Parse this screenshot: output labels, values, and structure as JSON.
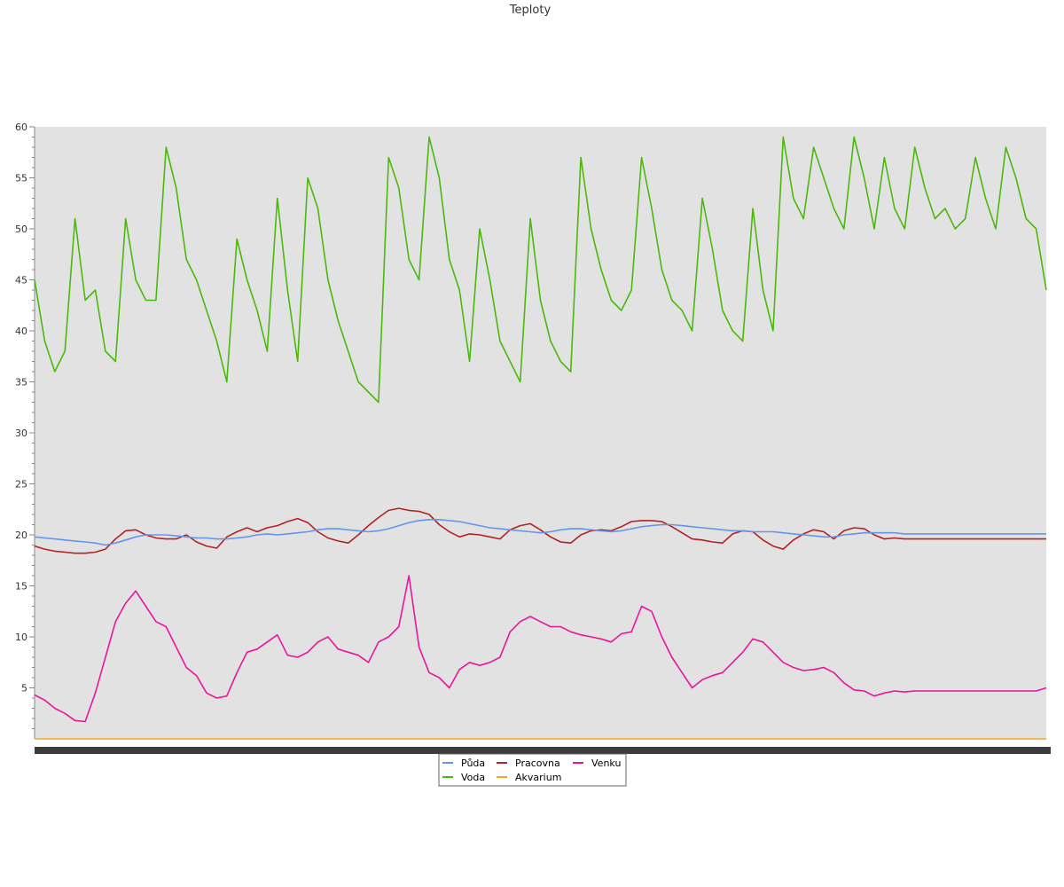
{
  "chart_data": {
    "type": "line",
    "title": "Teploty",
    "ylim": [
      0,
      60
    ],
    "yticks": [
      5,
      10,
      15,
      20,
      25,
      30,
      35,
      40,
      45,
      50,
      55,
      60
    ],
    "grid": false,
    "legend_position": "bottom-center",
    "x": [
      0,
      1,
      2,
      3,
      4,
      5,
      6,
      7,
      8,
      9,
      10,
      11,
      12,
      13,
      14,
      15,
      16,
      17,
      18,
      19,
      20,
      21,
      22,
      23,
      24,
      25,
      26,
      27,
      28,
      29,
      30,
      31,
      32,
      33,
      34,
      35,
      36,
      37,
      38,
      39,
      40,
      41,
      42,
      43,
      44,
      45,
      46,
      47,
      48,
      49,
      50,
      51,
      52,
      53,
      54,
      55,
      56,
      57,
      58,
      59,
      60,
      61,
      62,
      63,
      64,
      65,
      66,
      67,
      68,
      69,
      70,
      71,
      72,
      73,
      74,
      75,
      76,
      77,
      78,
      79,
      80,
      81,
      82,
      83,
      84,
      85,
      86,
      87,
      88,
      89,
      90,
      91,
      92,
      93,
      94,
      95,
      96,
      97,
      98,
      99,
      100
    ],
    "series": [
      {
        "name": "Půda",
        "color": "#6495ed",
        "values": [
          19.8,
          19.7,
          19.6,
          19.5,
          19.4,
          19.3,
          19.2,
          19.0,
          19.2,
          19.5,
          19.8,
          20.0,
          20.0,
          20.0,
          19.9,
          19.8,
          19.7,
          19.7,
          19.6,
          19.6,
          19.7,
          19.8,
          20.0,
          20.1,
          20.0,
          20.1,
          20.2,
          20.3,
          20.5,
          20.6,
          20.6,
          20.5,
          20.4,
          20.3,
          20.4,
          20.6,
          20.9,
          21.2,
          21.4,
          21.5,
          21.5,
          21.4,
          21.3,
          21.1,
          20.9,
          20.7,
          20.6,
          20.5,
          20.4,
          20.3,
          20.2,
          20.3,
          20.5,
          20.6,
          20.6,
          20.5,
          20.4,
          20.3,
          20.4,
          20.6,
          20.8,
          20.9,
          21.0,
          21.0,
          20.9,
          20.8,
          20.7,
          20.6,
          20.5,
          20.4,
          20.4,
          20.3,
          20.3,
          20.3,
          20.2,
          20.1,
          20.0,
          19.9,
          19.8,
          19.8,
          20.0,
          20.1,
          20.2,
          20.2,
          20.2,
          20.2,
          20.1,
          20.1,
          20.1,
          20.1,
          20.1,
          20.1,
          20.1,
          20.1,
          20.1,
          20.1,
          20.1,
          20.1,
          20.1,
          20.1,
          20.1
        ]
      },
      {
        "name": "Pracovna",
        "color": "#b22222",
        "values": [
          18.9,
          18.6,
          18.4,
          18.3,
          18.2,
          18.2,
          18.3,
          18.6,
          19.6,
          20.4,
          20.5,
          20.0,
          19.7,
          19.6,
          19.6,
          20.0,
          19.3,
          18.9,
          18.7,
          19.8,
          20.3,
          20.7,
          20.3,
          20.7,
          20.9,
          21.3,
          21.6,
          21.2,
          20.3,
          19.7,
          19.4,
          19.2,
          20.0,
          20.9,
          21.7,
          22.4,
          22.6,
          22.4,
          22.3,
          22.0,
          21.0,
          20.3,
          19.8,
          20.1,
          20.0,
          19.8,
          19.6,
          20.5,
          20.9,
          21.1,
          20.5,
          19.8,
          19.3,
          19.2,
          20.0,
          20.4,
          20.5,
          20.4,
          20.8,
          21.3,
          21.4,
          21.4,
          21.3,
          20.8,
          20.2,
          19.6,
          19.5,
          19.3,
          19.2,
          20.1,
          20.4,
          20.3,
          19.5,
          18.9,
          18.6,
          19.5,
          20.1,
          20.5,
          20.3,
          19.6,
          20.4,
          20.7,
          20.6,
          20.0,
          19.6,
          19.7,
          19.6,
          19.6,
          19.6,
          19.6,
          19.6,
          19.6,
          19.6,
          19.6,
          19.6,
          19.6,
          19.6,
          19.6,
          19.6,
          19.6,
          19.6
        ]
      },
      {
        "name": "Venku",
        "color": "#e8169d",
        "values": [
          4.3,
          3.8,
          3.0,
          2.5,
          1.8,
          1.7,
          4.5,
          8.0,
          11.5,
          13.3,
          14.5,
          13.0,
          11.5,
          11.0,
          9.0,
          7.0,
          6.2,
          4.5,
          4.0,
          4.2,
          6.5,
          8.5,
          8.8,
          9.5,
          10.2,
          8.2,
          8.0,
          8.5,
          9.5,
          10.0,
          8.8,
          8.5,
          8.2,
          7.5,
          9.5,
          10.0,
          11.0,
          16.0,
          9.0,
          6.5,
          6.0,
          5.0,
          6.8,
          7.5,
          7.2,
          7.5,
          8.0,
          10.5,
          11.5,
          12.0,
          11.5,
          11.0,
          11.0,
          10.5,
          10.2,
          10.0,
          9.8,
          9.5,
          10.3,
          10.5,
          13.0,
          12.5,
          10.0,
          8.0,
          6.5,
          5.0,
          5.8,
          6.2,
          6.5,
          7.5,
          8.5,
          9.8,
          9.5,
          8.5,
          7.5,
          7.0,
          6.7,
          6.8,
          7.0,
          6.5,
          5.5,
          4.8,
          4.7,
          4.2,
          4.5,
          4.7,
          4.6,
          4.7,
          4.7,
          4.7,
          4.7,
          4.7,
          4.7,
          4.7,
          4.7,
          4.7,
          4.7,
          4.7,
          4.7,
          4.7,
          5.0
        ]
      },
      {
        "name": "Voda",
        "color": "#4ab90c",
        "values": [
          45,
          39,
          36,
          38,
          51,
          43,
          44,
          38,
          37,
          51,
          45,
          43,
          43,
          58,
          54,
          47,
          45,
          42,
          39,
          35,
          49,
          45,
          42,
          38,
          53,
          44,
          37,
          55,
          52,
          45,
          41,
          38,
          35,
          34,
          33,
          57,
          54,
          47,
          45,
          59,
          55,
          47,
          44,
          37,
          50,
          45,
          39,
          37,
          35,
          51,
          43,
          39,
          37,
          36,
          57,
          50,
          46,
          43,
          42,
          44,
          57,
          52,
          46,
          43,
          42,
          40,
          53,
          48,
          42,
          40,
          39,
          52,
          44,
          40,
          59,
          53,
          51,
          58,
          55,
          52,
          50,
          59,
          55,
          50,
          57,
          52,
          50,
          58,
          54,
          51,
          52,
          50,
          51,
          57,
          53,
          50,
          58,
          55,
          51,
          50,
          44
        ]
      },
      {
        "name": "Akvarium",
        "color": "#f5a623",
        "values": [
          0,
          0,
          0,
          0,
          0,
          0,
          0,
          0,
          0,
          0,
          0,
          0,
          0,
          0,
          0,
          0,
          0,
          0,
          0,
          0,
          0,
          0,
          0,
          0,
          0,
          0,
          0,
          0,
          0,
          0,
          0,
          0,
          0,
          0,
          0,
          0,
          0,
          0,
          0,
          0,
          0,
          0,
          0,
          0,
          0,
          0,
          0,
          0,
          0,
          0,
          0,
          0,
          0,
          0,
          0,
          0,
          0,
          0,
          0,
          0,
          0,
          0,
          0,
          0,
          0,
          0,
          0,
          0,
          0,
          0,
          0,
          0,
          0,
          0,
          0,
          0,
          0,
          0,
          0,
          0,
          0,
          0,
          0,
          0,
          0,
          0,
          0,
          0,
          0,
          0,
          0,
          0,
          0,
          0,
          0,
          0,
          0,
          0,
          0,
          0,
          0
        ]
      }
    ]
  }
}
